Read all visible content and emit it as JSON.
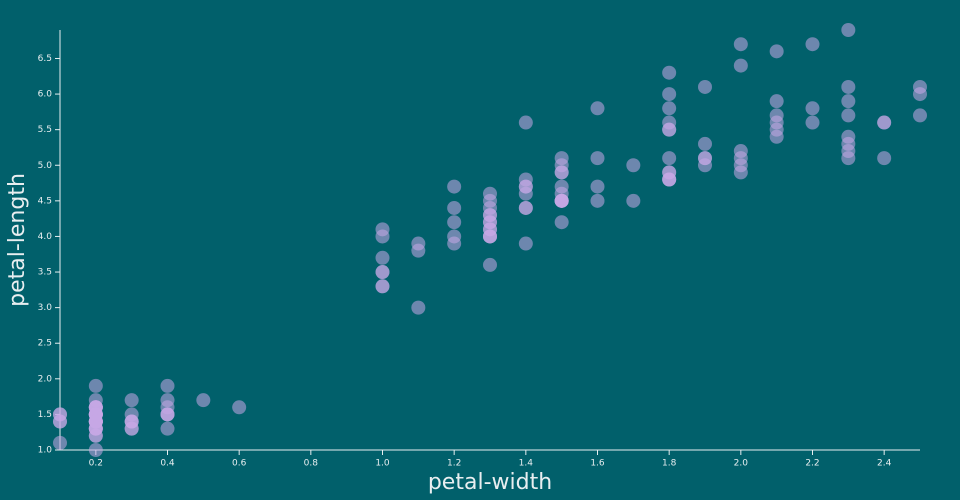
{
  "chart_data": {
    "type": "scatter",
    "x_label": "petal-width",
    "y_label": "petal-length",
    "color": "#c6a8e6",
    "x": [
      0.2,
      0.2,
      0.2,
      0.2,
      0.2,
      0.4,
      0.3,
      0.2,
      0.2,
      0.1,
      0.2,
      0.2,
      0.1,
      0.1,
      0.2,
      0.4,
      0.4,
      0.3,
      0.3,
      0.3,
      0.2,
      0.4,
      0.2,
      0.5,
      0.2,
      0.2,
      0.4,
      0.2,
      0.2,
      0.2,
      0.2,
      0.4,
      0.1,
      0.2,
      0.2,
      0.2,
      0.2,
      0.1,
      0.2,
      0.2,
      0.3,
      0.3,
      0.2,
      0.6,
      0.4,
      0.3,
      0.2,
      0.2,
      0.2,
      0.2,
      1.4,
      1.5,
      1.5,
      1.3,
      1.5,
      1.3,
      1.6,
      1.0,
      1.3,
      1.4,
      1.0,
      1.5,
      1.0,
      1.4,
      1.3,
      1.4,
      1.5,
      1.0,
      1.5,
      1.1,
      1.8,
      1.3,
      1.5,
      1.2,
      1.3,
      1.4,
      1.4,
      1.7,
      1.5,
      1.0,
      1.1,
      1.0,
      1.2,
      1.6,
      1.5,
      1.6,
      1.5,
      1.3,
      1.3,
      1.3,
      1.2,
      1.4,
      1.2,
      1.0,
      1.3,
      1.2,
      1.3,
      1.3,
      1.1,
      1.3,
      2.5,
      1.9,
      2.1,
      1.8,
      2.2,
      2.1,
      1.7,
      1.8,
      1.8,
      2.5,
      2.0,
      1.9,
      2.1,
      2.0,
      2.4,
      2.3,
      1.8,
      2.2,
      2.3,
      1.5,
      2.3,
      2.0,
      2.0,
      1.8,
      2.1,
      1.8,
      1.8,
      1.8,
      2.1,
      1.6,
      1.9,
      2.0,
      2.2,
      1.5,
      1.4,
      2.3,
      2.4,
      1.8,
      1.8,
      2.1,
      2.4,
      2.3,
      1.9,
      2.3,
      2.5,
      2.3,
      1.9,
      2.0,
      2.3,
      1.8
    ],
    "values": [
      1.4,
      1.4,
      1.3,
      1.5,
      1.4,
      1.7,
      1.4,
      1.5,
      1.4,
      1.5,
      1.5,
      1.6,
      1.4,
      1.1,
      1.2,
      1.5,
      1.3,
      1.4,
      1.7,
      1.5,
      1.7,
      1.5,
      1.0,
      1.7,
      1.9,
      1.6,
      1.6,
      1.5,
      1.4,
      1.6,
      1.6,
      1.5,
      1.5,
      1.4,
      1.5,
      1.2,
      1.3,
      1.4,
      1.3,
      1.5,
      1.3,
      1.3,
      1.3,
      1.6,
      1.9,
      1.4,
      1.6,
      1.4,
      1.5,
      1.4,
      4.7,
      4.5,
      4.9,
      4.0,
      4.6,
      4.5,
      4.7,
      3.3,
      4.6,
      3.9,
      3.5,
      4.2,
      4.0,
      4.7,
      3.6,
      4.4,
      4.5,
      4.1,
      4.5,
      3.9,
      4.8,
      4.0,
      4.9,
      4.7,
      4.3,
      4.4,
      4.8,
      5.0,
      4.5,
      3.5,
      3.8,
      3.7,
      3.9,
      5.1,
      4.5,
      4.5,
      4.7,
      4.4,
      4.1,
      4.0,
      4.4,
      4.6,
      4.0,
      3.3,
      4.2,
      4.2,
      4.2,
      4.3,
      3.0,
      4.1,
      6.0,
      5.1,
      5.9,
      5.6,
      5.8,
      6.6,
      4.5,
      6.3,
      5.8,
      6.1,
      5.1,
      5.3,
      5.5,
      5.0,
      5.1,
      5.3,
      5.5,
      6.7,
      6.9,
      5.0,
      5.7,
      4.9,
      6.7,
      4.9,
      5.7,
      6.0,
      4.8,
      4.9,
      5.6,
      5.8,
      6.1,
      6.4,
      5.6,
      5.1,
      5.6,
      6.1,
      5.6,
      5.5,
      4.8,
      5.4,
      5.6,
      5.1,
      5.1,
      5.9,
      5.7,
      5.2,
      5.0,
      5.2,
      5.4,
      5.1
    ],
    "xlim": [
      0.1,
      2.5
    ],
    "ylim": [
      1.0,
      6.9
    ],
    "xticks": [
      0.2,
      0.4,
      0.6,
      0.8,
      {
        "value": 1.0,
        "label": "1.0"
      },
      1.2,
      1.4,
      1.6,
      1.8,
      {
        "value": 2.0,
        "label": "2.0"
      },
      2.2,
      2.4
    ],
    "yticks": [
      {
        "value": 1.0,
        "label": "1.0"
      },
      1.5,
      {
        "value": 2.0,
        "label": "2.0"
      },
      2.5,
      {
        "value": 3.0,
        "label": "3.0"
      },
      3.5,
      {
        "value": 4.0,
        "label": "4.0"
      },
      4.5,
      {
        "value": 5.0,
        "label": "5.0"
      },
      5.5,
      {
        "value": 6.0,
        "label": "6.0"
      },
      6.5
    ]
  }
}
